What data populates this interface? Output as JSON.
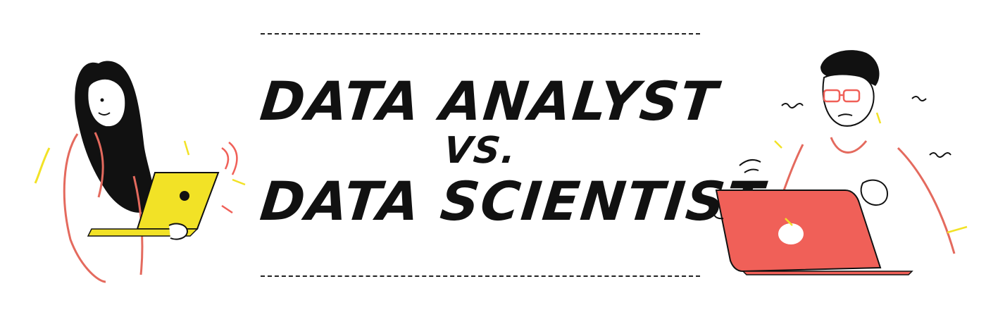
{
  "title": {
    "line1": "DATA ANALYST",
    "line2": "VS.",
    "line3": "DATA SCIENTIST"
  },
  "colors": {
    "ink": "#111111",
    "accent_yellow": "#f2e226",
    "accent_red": "#f06058",
    "skin_line": "#e46a5e"
  },
  "illustrations": {
    "left": "woman-with-yellow-laptop",
    "right": "man-with-glasses-and-red-laptop"
  }
}
